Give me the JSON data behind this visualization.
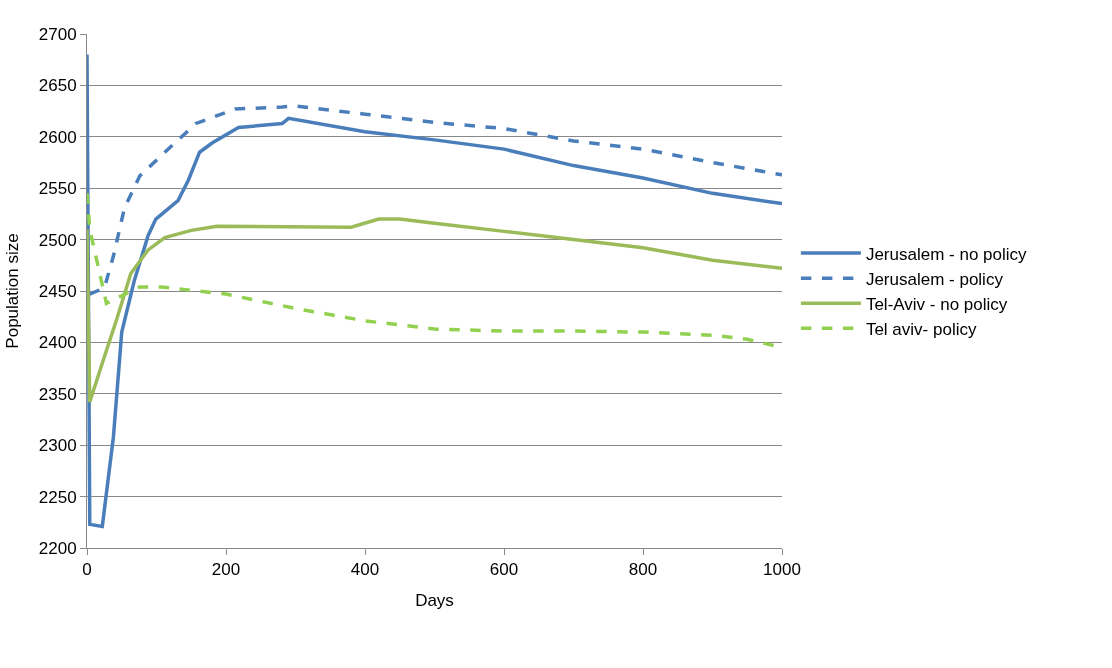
{
  "chart_data": {
    "type": "line",
    "xlabel": "Days",
    "ylabel": "Population size",
    "xlim": [
      0,
      1000
    ],
    "xticks": [
      0,
      200,
      400,
      600,
      800,
      1000
    ],
    "ylim": [
      2200,
      2700
    ],
    "yticks": [
      2200,
      2250,
      2300,
      2350,
      2400,
      2450,
      2500,
      2550,
      2600,
      2650,
      2700
    ],
    "grid": "y",
    "legend": "right",
    "marker": "none",
    "series": [
      {
        "name": "Jerusalem - no policy",
        "color": "#4a7ebb",
        "line_style": "solid",
        "x": [
          0,
          4,
          22,
          38,
          50,
          68,
          88,
          99,
          131,
          146,
          162,
          180,
          218,
          281,
          290,
          400,
          500,
          600,
          700,
          800,
          900,
          1000
        ],
        "values": [
          2680,
          2223,
          2221,
          2308,
          2410,
          2460,
          2504,
          2520,
          2538,
          2558,
          2585,
          2594,
          2609,
          2613,
          2618,
          2605,
          2597,
          2588,
          2572,
          2560,
          2545,
          2535
        ]
      },
      {
        "name": "Jerusalem - policy",
        "color": "#4a7ebb",
        "line_style": "dashed",
        "x": [
          4,
          25,
          38,
          54,
          76,
          112,
          157,
          213,
          281,
          300,
          400,
          500,
          600,
          700,
          800,
          900,
          1000
        ],
        "values": [
          2447,
          2453,
          2484,
          2531,
          2562,
          2585,
          2613,
          2627,
          2629,
          2630,
          2622,
          2614,
          2608,
          2596,
          2588,
          2575,
          2563
        ]
      },
      {
        "name": "Tel-Aviv - no policy",
        "color": "#9bbb59",
        "line_style": "solid",
        "x": [
          0,
          4,
          25,
          43,
          63,
          88,
          112,
          150,
          187,
          380,
          420,
          450,
          500,
          600,
          700,
          800,
          900,
          1000
        ],
        "values": [
          2510,
          2342,
          2386,
          2423,
          2467,
          2490,
          2502,
          2509,
          2513,
          2512,
          2520,
          2520,
          2516,
          2508,
          2500,
          2492,
          2480,
          2472
        ]
      },
      {
        "name": "Tel aviv- policy",
        "color": "#92d050",
        "line_style": "dashed",
        "x": [
          0,
          4,
          28,
          76,
          106,
          200,
          300,
          400,
          500,
          600,
          700,
          800,
          900,
          950,
          1000
        ],
        "values": [
          2545,
          2510,
          2438,
          2454,
          2454,
          2447,
          2433,
          2421,
          2413,
          2411,
          2411,
          2410,
          2407,
          2403,
          2395
        ]
      }
    ]
  }
}
